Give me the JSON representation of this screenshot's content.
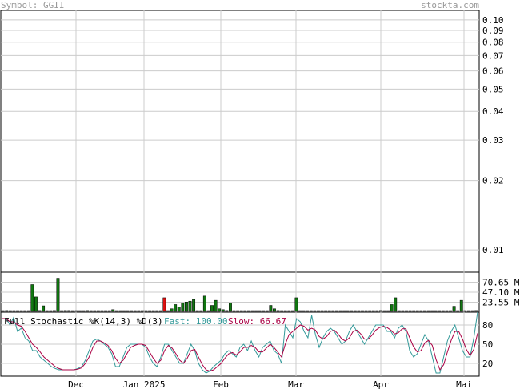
{
  "header": {
    "symbol": "Symbol: GGII",
    "site": "stockta.com"
  },
  "chart_data": [
    {
      "type": "line",
      "panel": "price",
      "scale": "log",
      "y_ticks": [
        "0.10",
        "0.09",
        "0.08",
        "0.07",
        "0.06",
        "0.05",
        "0.04",
        "0.03",
        "0.02",
        "0.01"
      ],
      "ylim": [
        0.008,
        0.11
      ],
      "grid": true,
      "series": []
    },
    {
      "type": "bar",
      "panel": "volume",
      "y_ticks": [
        "70.65 M",
        "47.10 M",
        "23.55 M"
      ],
      "ylim": [
        0,
        94.2
      ],
      "up_color": "#117711",
      "down_color": "#dd1111",
      "values": [
        3,
        4,
        0.8,
        2,
        1.5,
        0.8,
        1.2,
        3,
        65,
        36,
        4,
        15,
        1,
        2,
        4,
        80,
        0.8,
        4,
        4,
        0.4,
        1.2,
        2,
        2,
        4,
        0.6,
        1.2,
        1.2,
        1.2,
        0.8,
        0.4,
        6,
        1.2,
        3,
        3,
        1.2,
        3,
        2,
        1.2,
        3,
        1.2,
        0.8,
        1.2,
        1.2,
        2,
        34,
        3,
        8,
        18,
        12,
        22,
        24,
        26,
        30,
        1.2,
        0.8,
        38,
        2,
        16,
        28,
        8,
        6,
        4,
        22,
        2,
        1.2,
        2,
        1.2,
        1.2,
        1.2,
        2,
        0.8,
        2,
        0.8,
        16,
        8,
        4,
        0.6,
        0.6,
        0.6,
        0.6,
        34,
        0.6,
        0.6,
        0.6,
        0.6,
        0.6,
        0.6,
        0.6,
        2,
        0.6,
        2,
        0.6,
        0.6,
        0.6,
        2,
        0.6,
        0.6,
        0.6,
        0.6,
        0.6,
        0.6,
        0.6,
        0.6,
        4,
        0.6,
        0.6,
        18,
        34,
        0.6,
        0.6,
        0.6,
        0.6,
        0.6,
        0.6,
        2,
        0.6,
        0.6,
        0.6,
        0.6,
        0.6,
        2,
        0.6,
        0.6,
        14,
        0.6,
        28,
        0.6,
        2,
        0.6,
        4
      ],
      "down_index": [
        26,
        44,
        79,
        99
      ]
    },
    {
      "type": "line",
      "panel": "stochastic",
      "title": "Full Stochastic %K(14,3) %D(3)",
      "fast_label": "Fast: 100.00",
      "slow_label": "Slow: 66.67",
      "y_ticks": [
        "80",
        "50",
        "20"
      ],
      "ylim": [
        0,
        100
      ],
      "fast_color": "#339999",
      "slow_color": "#aa0044",
      "x_ticks": [
        "Dec",
        "Jan 2025",
        "Feb",
        "Mar",
        "Apr",
        "Mai"
      ],
      "series": [
        {
          "name": "Fast",
          "values": [
            90,
            90,
            80,
            92,
            70,
            75,
            60,
            55,
            40,
            40,
            30,
            25,
            20,
            15,
            12,
            10,
            10,
            10,
            10,
            10,
            12,
            15,
            25,
            40,
            55,
            58,
            55,
            50,
            45,
            35,
            15,
            15,
            30,
            45,
            50,
            50,
            50,
            50,
            45,
            30,
            20,
            15,
            30,
            50,
            50,
            40,
            30,
            20,
            20,
            35,
            50,
            40,
            20,
            10,
            5,
            8,
            15,
            20,
            25,
            35,
            40,
            35,
            30,
            45,
            50,
            40,
            55,
            40,
            30,
            45,
            50,
            55,
            40,
            35,
            20,
            80,
            70,
            60,
            90,
            85,
            70,
            60,
            95,
            65,
            45,
            60,
            70,
            75,
            70,
            60,
            50,
            55,
            70,
            80,
            70,
            60,
            50,
            60,
            70,
            80,
            80,
            80,
            70,
            70,
            60,
            75,
            80,
            70,
            40,
            30,
            35,
            50,
            65,
            55,
            30,
            5,
            5,
            30,
            55,
            70,
            80,
            60,
            40,
            30,
            30,
            60,
            100
          ]
        },
        {
          "name": "Slow",
          "values": [
            90,
            90,
            85,
            85,
            80,
            78,
            70,
            60,
            50,
            45,
            38,
            30,
            25,
            20,
            15,
            12,
            10,
            10,
            10,
            10,
            11,
            13,
            20,
            30,
            45,
            55,
            55,
            52,
            48,
            40,
            28,
            20,
            25,
            35,
            45,
            48,
            50,
            50,
            48,
            38,
            28,
            20,
            25,
            40,
            48,
            44,
            35,
            25,
            20,
            28,
            40,
            42,
            30,
            18,
            10,
            8,
            10,
            15,
            20,
            28,
            35,
            37,
            33,
            38,
            45,
            45,
            48,
            45,
            38,
            38,
            44,
            50,
            45,
            38,
            30,
            50,
            65,
            70,
            75,
            80,
            78,
            72,
            75,
            72,
            62,
            58,
            62,
            70,
            72,
            66,
            58,
            55,
            60,
            70,
            72,
            66,
            58,
            58,
            64,
            72,
            76,
            78,
            76,
            72,
            66,
            68,
            74,
            74,
            60,
            46,
            38,
            40,
            52,
            56,
            48,
            26,
            10,
            18,
            38,
            56,
            70,
            70,
            58,
            42,
            32,
            42,
            67
          ]
        }
      ]
    }
  ]
}
